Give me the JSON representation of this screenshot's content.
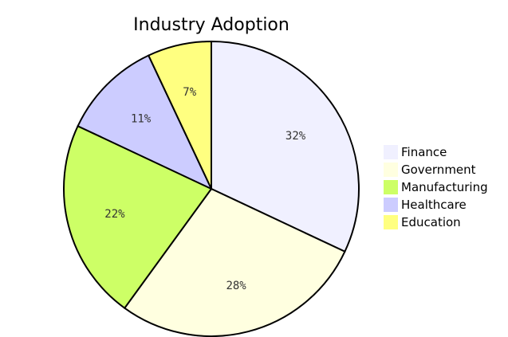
{
  "chart_data": {
    "type": "pie",
    "title": "Industry Adoption",
    "categories": [
      "Finance",
      "Government",
      "Manufacturing",
      "Healthcare",
      "Education"
    ],
    "values": [
      32,
      28,
      22,
      11,
      7
    ],
    "labels": [
      "32%",
      "28%",
      "22%",
      "11%",
      "7%"
    ],
    "colors": [
      "#f0f0ff",
      "#ffffe0",
      "#cdff66",
      "#ccccff",
      "#ffff80"
    ],
    "legend_position": "right",
    "start_angle": "top",
    "direction": "clockwise"
  }
}
